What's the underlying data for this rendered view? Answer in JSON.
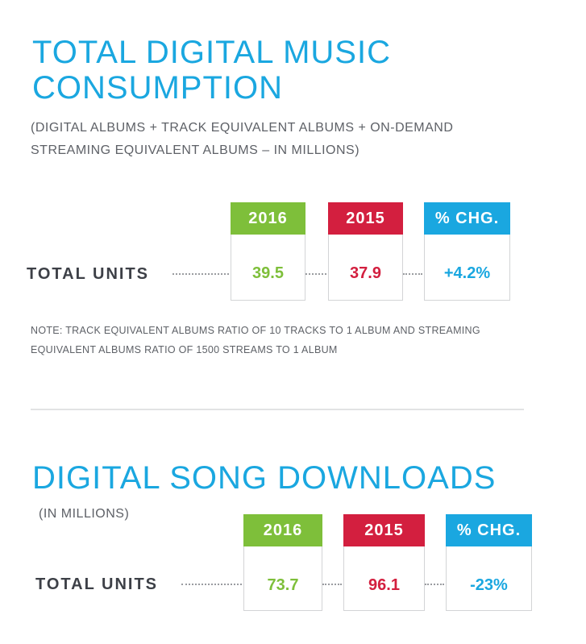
{
  "colors": {
    "title": "#1aa7e0",
    "year_2016": "#7ebf3a",
    "year_2015": "#d31f3f",
    "pct_chg": "#1aa7e0",
    "text_gray": "#5e6167"
  },
  "section1": {
    "title_line1": "TOTAL DIGITAL MUSIC",
    "title_line2": "CONSUMPTION",
    "subtitle_line1": "(DIGITAL ALBUMS + TRACK EQUIVALENT ALBUMS + ON-DEMAND",
    "subtitle_line2": "STREAMING EQUIVALENT ALBUMS – IN MILLIONS)",
    "headers": [
      "2016",
      "2015",
      "% CHG."
    ],
    "row_label": "TOTAL UNITS",
    "values": [
      "39.5",
      "37.9",
      "+4.2%"
    ],
    "note_line1": "NOTE: TRACK EQUIVALENT ALBUMS RATIO OF 10 TRACKS TO 1 ALBUM AND STREAMING",
    "note_line2": "EQUIVALENT ALBUMS RATIO OF 1500 STREAMS TO 1 ALBUM"
  },
  "section2": {
    "title": "DIGITAL SONG DOWNLOADS",
    "subtitle": "(IN MILLIONS)",
    "headers": [
      "2016",
      "2015",
      "% CHG."
    ],
    "row_label": "TOTAL UNITS",
    "values": [
      "73.7",
      "96.1",
      "-23%"
    ]
  }
}
